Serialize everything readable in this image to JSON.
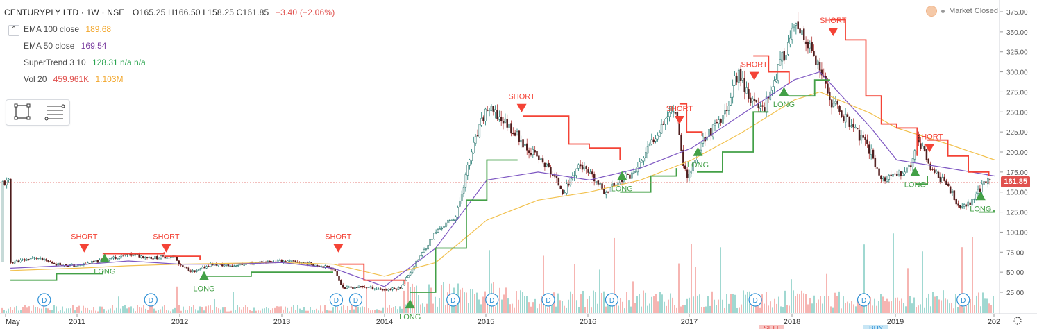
{
  "header": {
    "symbol": "CENTURYPLY LTD · 1W · NSE",
    "ohlc": "O165.25  H166.50  L158.25  C161.85",
    "change": "−3.40 (−2.06%)",
    "collapse_icon": "chevron-up-icon"
  },
  "indicators": [
    {
      "label": "EMA 100 close",
      "value": "189.68",
      "color": "#f2a62b"
    },
    {
      "label": "EMA 50 close",
      "value": "169.54",
      "color": "#7b3fa0"
    },
    {
      "label": "SuperTrend 3 10",
      "value": "128.31  n/a  n/a",
      "color": "#26a24c"
    },
    {
      "label": "Vol 20",
      "value": "459.961K",
      "value2": "1.103M",
      "color": "#e0514e",
      "color2": "#f2a62b"
    }
  ],
  "status": {
    "market": "Market Closed"
  },
  "last_price_label": "161.85",
  "bottom_labels": {
    "sell": "SELL",
    "buy": "BUY"
  },
  "colors": {
    "up": "#26a69a",
    "down": "#ef5350",
    "st_green": "#43a047",
    "st_red": "#f44336",
    "ema100": "#f2c14e",
    "ema50": "#7e57c2"
  },
  "chart_data": {
    "type": "line",
    "series_type": "candlestick",
    "title": "CENTURYPLY LTD · 1W · NSE",
    "x_ticks": [
      "May",
      "2011",
      "2012",
      "2013",
      "2014",
      "2015",
      "2016",
      "2017",
      "2018",
      "2019",
      "202"
    ],
    "y_ticks": [
      "375.00",
      "350.00",
      "325.00",
      "300.00",
      "275.00",
      "250.00",
      "225.00",
      "200.00",
      "175.00",
      "150.00",
      "125.00",
      "100.00",
      "75.00",
      "50.00",
      "25.00"
    ],
    "ylim": [
      0,
      385
    ],
    "last_price": 161.85,
    "price_path": [
      [
        2010.35,
        62
      ],
      [
        2010.6,
        68
      ],
      [
        2010.8,
        60
      ],
      [
        2011.0,
        58
      ],
      [
        2011.25,
        65
      ],
      [
        2011.5,
        72
      ],
      [
        2011.75,
        68
      ],
      [
        2011.95,
        70
      ],
      [
        2012.0,
        58
      ],
      [
        2012.15,
        50
      ],
      [
        2012.3,
        60
      ],
      [
        2012.5,
        58
      ],
      [
        2012.75,
        62
      ],
      [
        2013.0,
        64
      ],
      [
        2013.2,
        62
      ],
      [
        2013.5,
        55
      ],
      [
        2013.6,
        30
      ],
      [
        2013.8,
        32
      ],
      [
        2014.0,
        28
      ],
      [
        2014.15,
        30
      ],
      [
        2014.35,
        70
      ],
      [
        2014.5,
        100
      ],
      [
        2014.7,
        120
      ],
      [
        2014.85,
        200
      ],
      [
        2015.0,
        255
      ],
      [
        2015.2,
        235
      ],
      [
        2015.4,
        205
      ],
      [
        2015.6,
        180
      ],
      [
        2015.75,
        150
      ],
      [
        2015.9,
        185
      ],
      [
        2016.05,
        165
      ],
      [
        2016.15,
        150
      ],
      [
        2016.3,
        165
      ],
      [
        2016.45,
        175
      ],
      [
        2016.6,
        210
      ],
      [
        2016.75,
        245
      ],
      [
        2016.85,
        255
      ],
      [
        2016.92,
        180
      ],
      [
        2016.97,
        170
      ],
      [
        2017.1,
        215
      ],
      [
        2017.3,
        240
      ],
      [
        2017.45,
        300
      ],
      [
        2017.6,
        260
      ],
      [
        2017.7,
        255
      ],
      [
        2017.85,
        305
      ],
      [
        2018.0,
        355
      ],
      [
        2018.15,
        330
      ],
      [
        2018.25,
        300
      ],
      [
        2018.35,
        265
      ],
      [
        2018.55,
        235
      ],
      [
        2018.75,
        200
      ],
      [
        2018.85,
        165
      ],
      [
        2019.0,
        170
      ],
      [
        2019.15,
        185
      ],
      [
        2019.2,
        220
      ],
      [
        2019.35,
        175
      ],
      [
        2019.5,
        160
      ],
      [
        2019.6,
        130
      ],
      [
        2019.7,
        135
      ],
      [
        2019.85,
        160
      ],
      [
        2019.95,
        172
      ],
      [
        2020.0,
        162
      ]
    ],
    "ema100": [
      [
        2010.35,
        52
      ],
      [
        2011.0,
        55
      ],
      [
        2011.5,
        58
      ],
      [
        2012.0,
        60
      ],
      [
        2012.5,
        61
      ],
      [
        2013.0,
        62
      ],
      [
        2013.5,
        60
      ],
      [
        2014.0,
        45
      ],
      [
        2014.5,
        62
      ],
      [
        2015.0,
        115
      ],
      [
        2015.5,
        140
      ],
      [
        2016.0,
        150
      ],
      [
        2016.5,
        165
      ],
      [
        2017.0,
        190
      ],
      [
        2017.5,
        225
      ],
      [
        2018.0,
        265
      ],
      [
        2018.25,
        275
      ],
      [
        2018.75,
        248
      ],
      [
        2019.0,
        230
      ],
      [
        2019.5,
        210
      ],
      [
        2019.96,
        190
      ]
    ],
    "ema50": [
      [
        2010.35,
        55
      ],
      [
        2011.0,
        59
      ],
      [
        2011.5,
        64
      ],
      [
        2012.0,
        60
      ],
      [
        2012.5,
        60
      ],
      [
        2013.0,
        62
      ],
      [
        2013.5,
        55
      ],
      [
        2014.0,
        32
      ],
      [
        2014.5,
        80
      ],
      [
        2015.0,
        165
      ],
      [
        2015.5,
        175
      ],
      [
        2016.0,
        165
      ],
      [
        2016.5,
        180
      ],
      [
        2017.0,
        205
      ],
      [
        2017.5,
        248
      ],
      [
        2018.0,
        290
      ],
      [
        2018.25,
        300
      ],
      [
        2018.75,
        230
      ],
      [
        2019.0,
        190
      ],
      [
        2019.5,
        180
      ],
      [
        2019.96,
        170
      ]
    ],
    "supertrend": [
      {
        "trend": "green",
        "pts": [
          [
            2010.35,
            40
          ],
          [
            2010.8,
            48
          ],
          [
            2011.25,
            52
          ]
        ]
      },
      {
        "trend": "red",
        "pts": [
          [
            2011.25,
            73
          ],
          [
            2011.5,
            73
          ],
          [
            2011.85,
            75
          ]
        ]
      },
      {
        "trend": "red",
        "pts": [
          [
            2011.85,
            70
          ],
          [
            2012.2,
            65
          ]
        ]
      },
      {
        "trend": "green",
        "pts": [
          [
            2012.25,
            45
          ],
          [
            2012.7,
            50
          ],
          [
            2013.2,
            50
          ],
          [
            2013.5,
            50
          ]
        ]
      },
      {
        "trend": "red",
        "pts": [
          [
            2013.55,
            60
          ],
          [
            2013.8,
            40
          ],
          [
            2014.2,
            35
          ]
        ]
      },
      {
        "trend": "green",
        "pts": [
          [
            2014.25,
            25
          ],
          [
            2014.5,
            80
          ],
          [
            2014.8,
            140
          ],
          [
            2015.0,
            190
          ],
          [
            2015.3,
            190
          ]
        ]
      },
      {
        "trend": "red",
        "pts": [
          [
            2015.35,
            245
          ],
          [
            2015.7,
            245
          ],
          [
            2015.8,
            210
          ],
          [
            2016.0,
            205
          ],
          [
            2016.3,
            190
          ]
        ]
      },
      {
        "trend": "green",
        "pts": [
          [
            2016.3,
            150
          ],
          [
            2016.6,
            170
          ],
          [
            2016.85,
            180
          ]
        ]
      },
      {
        "trend": "red",
        "pts": [
          [
            2016.88,
            260
          ],
          [
            2016.95,
            225
          ],
          [
            2017.1,
            220
          ]
        ]
      },
      {
        "trend": "green",
        "pts": [
          [
            2017.05,
            175
          ],
          [
            2017.3,
            200
          ],
          [
            2017.6,
            250
          ],
          [
            2017.75,
            250
          ]
        ]
      },
      {
        "trend": "red",
        "pts": [
          [
            2017.6,
            320
          ],
          [
            2017.75,
            300
          ],
          [
            2017.95,
            285
          ]
        ]
      },
      {
        "trend": "green",
        "pts": [
          [
            2017.95,
            270
          ],
          [
            2018.2,
            290
          ],
          [
            2018.35,
            290
          ]
        ]
      },
      {
        "trend": "red",
        "pts": [
          [
            2018.35,
            365
          ],
          [
            2018.5,
            340
          ],
          [
            2018.7,
            270
          ],
          [
            2018.85,
            235
          ],
          [
            2019.0,
            230
          ],
          [
            2019.2,
            195
          ]
        ]
      },
      {
        "trend": "green",
        "pts": [
          [
            2019.18,
            160
          ],
          [
            2019.3,
            170
          ]
        ]
      },
      {
        "trend": "red",
        "pts": [
          [
            2019.3,
            215
          ],
          [
            2019.5,
            195
          ],
          [
            2019.7,
            175
          ],
          [
            2019.9,
            170
          ]
        ]
      },
      {
        "trend": "green",
        "pts": [
          [
            2019.8,
            125
          ],
          [
            2019.95,
            128
          ]
        ]
      }
    ],
    "signals": [
      {
        "label": "SHORT",
        "x": 2011.07,
        "y": 85,
        "dir": "down"
      },
      {
        "label": "LONG",
        "x": 2011.27,
        "y": 62,
        "dir": "up"
      },
      {
        "label": "SHORT",
        "x": 2011.87,
        "y": 85,
        "dir": "down"
      },
      {
        "label": "LONG",
        "x": 2012.24,
        "y": 40,
        "dir": "up"
      },
      {
        "label": "SHORT",
        "x": 2013.55,
        "y": 85,
        "dir": "down"
      },
      {
        "label": "LONG",
        "x": 2014.25,
        "y": 5,
        "dir": "up"
      },
      {
        "label": "SHORT",
        "x": 2015.34,
        "y": 260,
        "dir": "down"
      },
      {
        "label": "LONG",
        "x": 2016.32,
        "y": 165,
        "dir": "up"
      },
      {
        "label": "SHORT",
        "x": 2016.88,
        "y": 245,
        "dir": "down"
      },
      {
        "label": "LONG",
        "x": 2017.06,
        "y": 195,
        "dir": "up"
      },
      {
        "label": "SHORT",
        "x": 2017.61,
        "y": 300,
        "dir": "down"
      },
      {
        "label": "LONG",
        "x": 2017.9,
        "y": 270,
        "dir": "up"
      },
      {
        "label": "SHORT",
        "x": 2018.38,
        "y": 355,
        "dir": "down"
      },
      {
        "label": "LONG",
        "x": 2019.18,
        "y": 170,
        "dir": "up"
      },
      {
        "label": "SHORT",
        "x": 2019.32,
        "y": 210,
        "dir": "down"
      },
      {
        "label": "LONG",
        "x": 2019.82,
        "y": 140,
        "dir": "up"
      }
    ],
    "dividend_markers": [
      2010.68,
      2011.72,
      2013.53,
      2013.72,
      2014.67,
      2015.05,
      2015.6,
      2016.22,
      2017.62,
      2018.68,
      2019.65
    ],
    "dividend_label": "D"
  }
}
